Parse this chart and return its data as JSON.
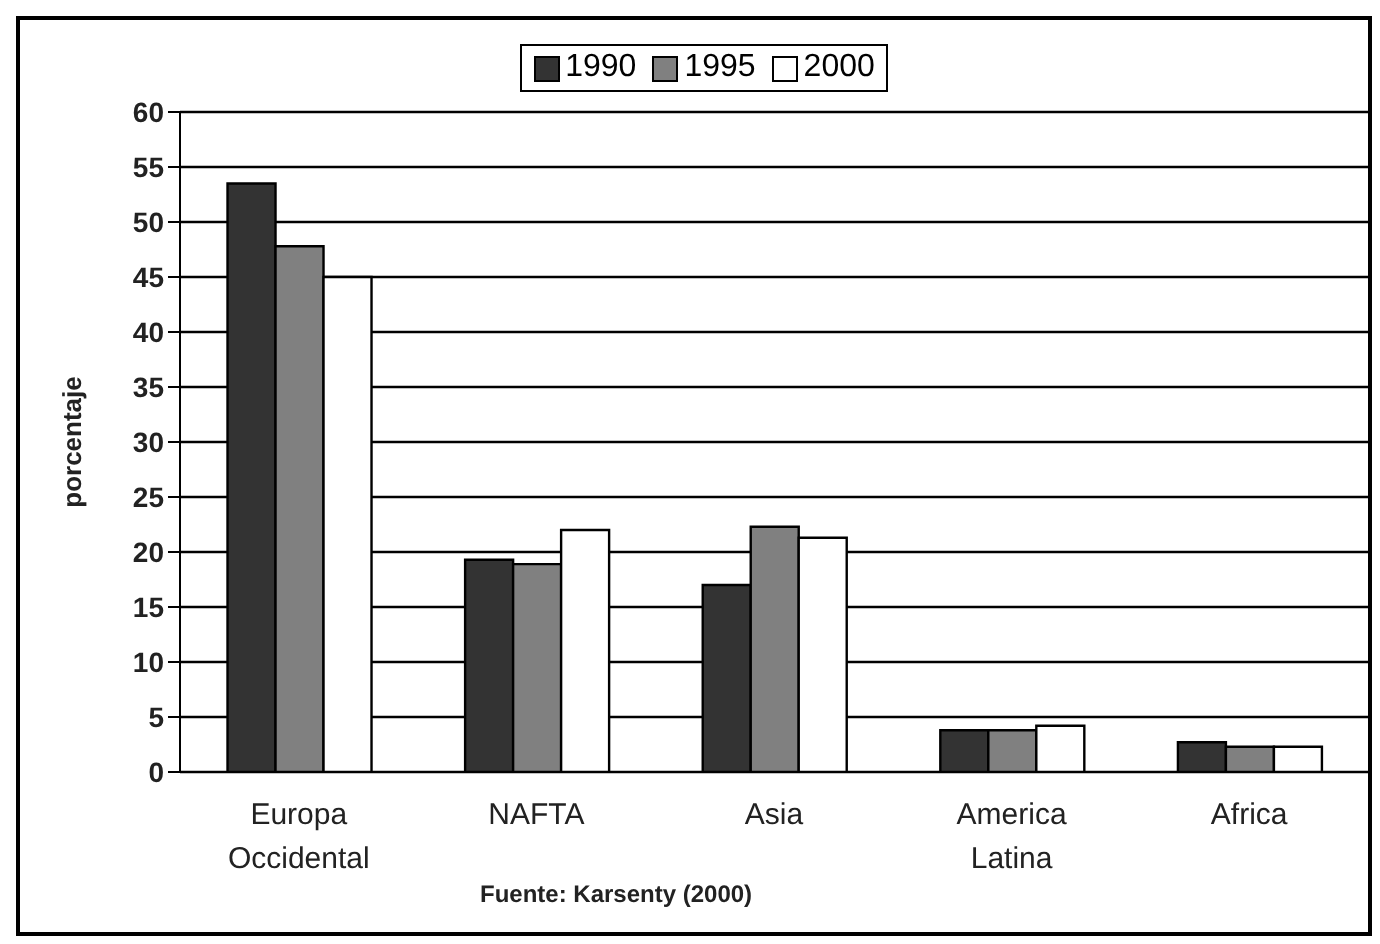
{
  "chart_data": {
    "type": "bar",
    "ylabel": "porcentaje",
    "categories": [
      "Europa Occidental",
      "NAFTA",
      "Asia",
      "America Latina",
      "Africa"
    ],
    "series": [
      {
        "name": "1990",
        "color": "#333333",
        "values": [
          53.5,
          19.3,
          17,
          3.8,
          2.7
        ]
      },
      {
        "name": "1995",
        "color": "#808080",
        "values": [
          47.8,
          18.9,
          22.3,
          3.8,
          2.3
        ]
      },
      {
        "name": "2000",
        "color": "#ffffff",
        "values": [
          45,
          22,
          21.3,
          4.2,
          2.3
        ]
      }
    ],
    "ylim": [
      0,
      60
    ],
    "yticks": [
      0,
      5,
      10,
      15,
      20,
      25,
      30,
      35,
      40,
      45,
      50,
      55,
      60
    ],
    "grid": "y",
    "legend": "top",
    "annotations": [
      "Fuente: Karsenty (2000)"
    ]
  }
}
